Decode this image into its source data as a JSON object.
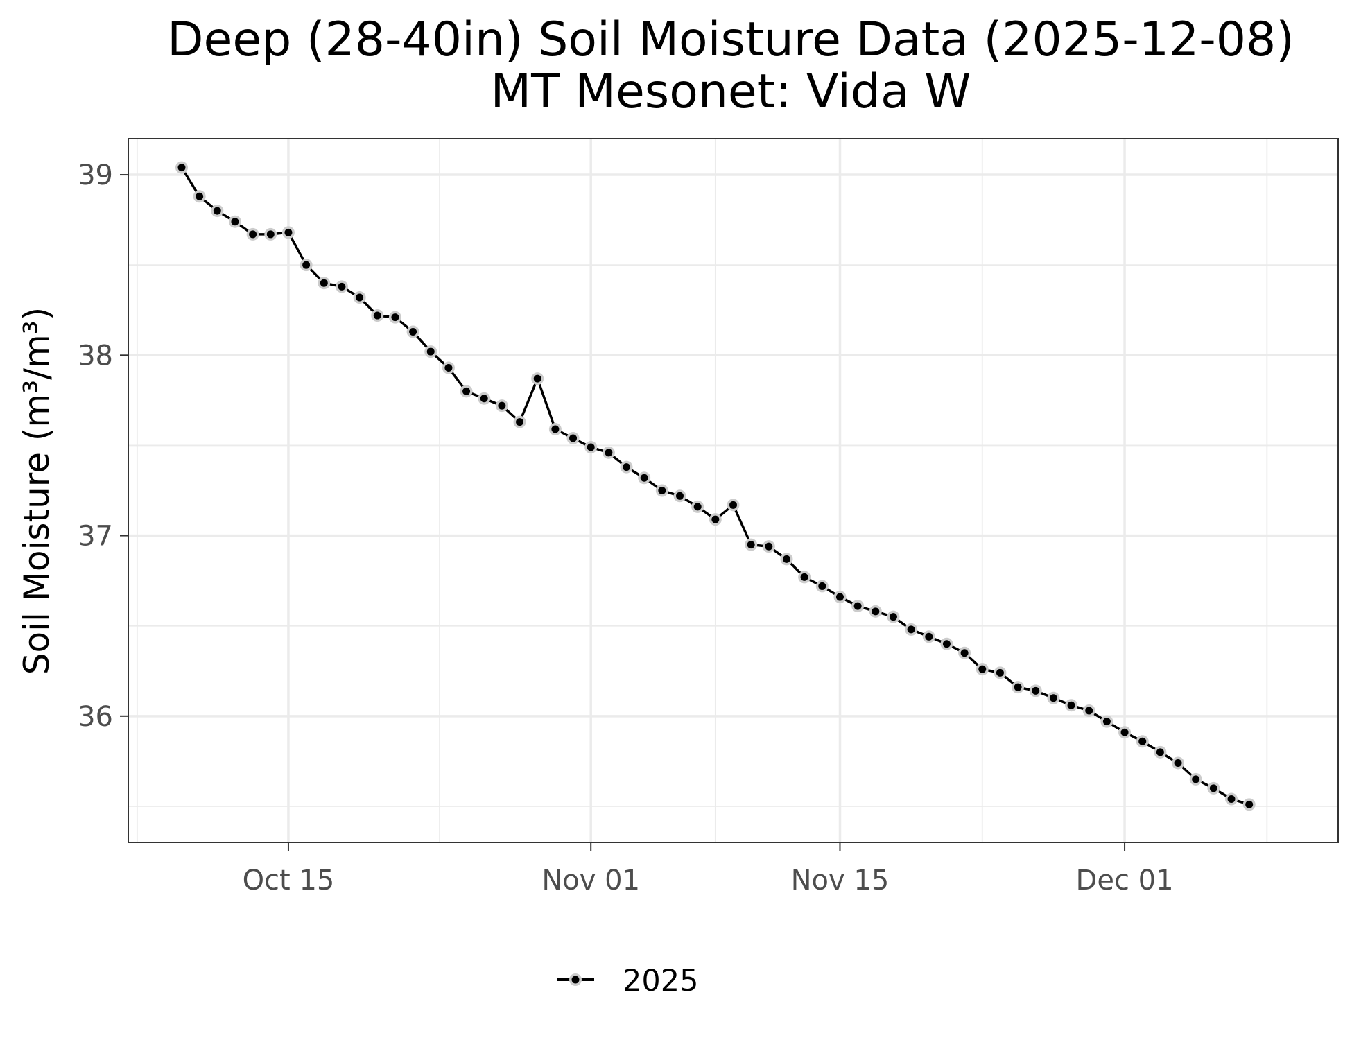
{
  "chart_data": {
    "type": "line",
    "title": "Deep (28-40in) Soil Moisture Data (2025-12-08)",
    "subtitle": "MT Mesonet: Vida W",
    "xlabel": "",
    "ylabel": "Soil Moisture (m³/m³)",
    "x_ticks": [
      {
        "date": "2025-10-15",
        "label": "Oct 15"
      },
      {
        "date": "2025-11-01",
        "label": "Nov 01"
      },
      {
        "date": "2025-11-15",
        "label": "Nov 15"
      },
      {
        "date": "2025-12-01",
        "label": "Dec 01"
      }
    ],
    "y_ticks": [
      36,
      37,
      38,
      39
    ],
    "xlim": [
      "2025-10-06",
      "2025-12-13"
    ],
    "ylim": [
      35.3,
      39.2
    ],
    "grid": true,
    "legend_position": "bottom",
    "colors": {
      "line": "#000000",
      "point_halo": "#cccccc",
      "grid": "#ebebeb",
      "panel_border": "#333333"
    },
    "series": [
      {
        "name": "2025",
        "x": [
          "2025-10-09",
          "2025-10-10",
          "2025-10-11",
          "2025-10-12",
          "2025-10-13",
          "2025-10-14",
          "2025-10-15",
          "2025-10-16",
          "2025-10-17",
          "2025-10-18",
          "2025-10-19",
          "2025-10-20",
          "2025-10-21",
          "2025-10-22",
          "2025-10-23",
          "2025-10-24",
          "2025-10-25",
          "2025-10-26",
          "2025-10-27",
          "2025-10-28",
          "2025-10-29",
          "2025-10-30",
          "2025-10-31",
          "2025-11-01",
          "2025-11-02",
          "2025-11-03",
          "2025-11-04",
          "2025-11-05",
          "2025-11-06",
          "2025-11-07",
          "2025-11-08",
          "2025-11-09",
          "2025-11-10",
          "2025-11-11",
          "2025-11-12",
          "2025-11-13",
          "2025-11-14",
          "2025-11-15",
          "2025-11-16",
          "2025-11-17",
          "2025-11-18",
          "2025-11-19",
          "2025-11-20",
          "2025-11-21",
          "2025-11-22",
          "2025-11-23",
          "2025-11-24",
          "2025-11-25",
          "2025-11-26",
          "2025-11-27",
          "2025-11-28",
          "2025-11-29",
          "2025-11-30",
          "2025-12-01",
          "2025-12-02",
          "2025-12-03",
          "2025-12-04",
          "2025-12-05",
          "2025-12-06",
          "2025-12-07",
          "2025-12-08"
        ],
        "values": [
          39.04,
          38.88,
          38.8,
          38.74,
          38.67,
          38.67,
          38.68,
          38.5,
          38.4,
          38.38,
          38.32,
          38.22,
          38.21,
          38.13,
          38.02,
          37.93,
          37.8,
          37.76,
          37.72,
          37.63,
          37.87,
          37.59,
          37.54,
          37.49,
          37.46,
          37.38,
          37.32,
          37.25,
          37.22,
          37.16,
          37.09,
          37.17,
          36.95,
          36.94,
          36.87,
          36.77,
          36.72,
          36.66,
          36.61,
          36.58,
          36.55,
          36.48,
          36.44,
          36.4,
          36.35,
          36.26,
          36.24,
          36.16,
          36.14,
          36.1,
          36.06,
          36.03,
          35.97,
          35.91,
          35.86,
          35.8,
          35.74,
          35.65,
          35.6,
          35.54,
          35.51
        ]
      }
    ]
  }
}
